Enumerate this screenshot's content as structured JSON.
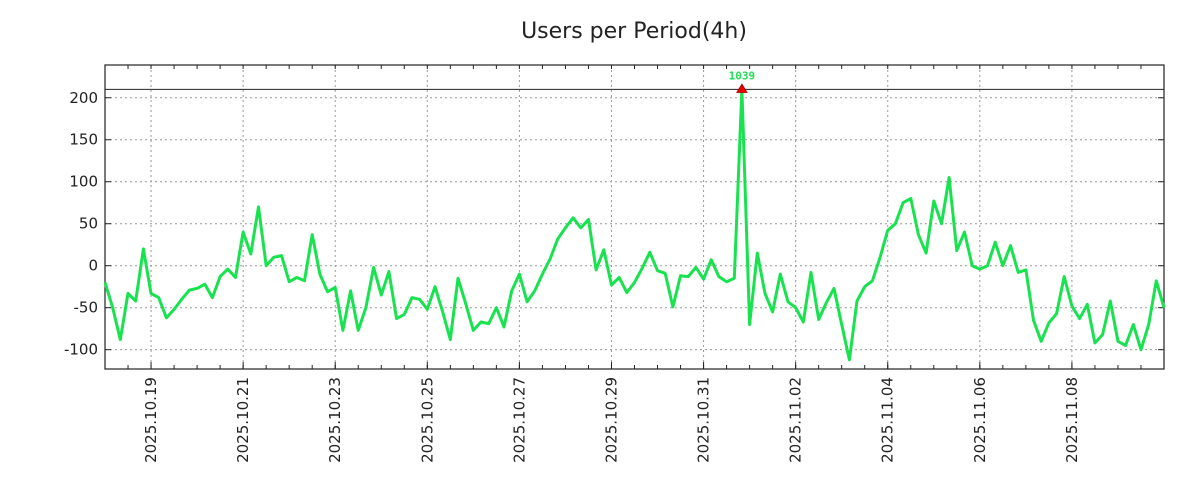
{
  "chart_data": {
    "type": "line",
    "title": "Users per Period(4h)",
    "xlabel": "",
    "ylabel": "",
    "x_start": "2025.10.18 00:00",
    "x_step_hours": 4,
    "x_range_days": [
      0,
      23
    ],
    "ylim": [
      -123,
      239
    ],
    "grid": true,
    "y_ticks": [
      -100,
      -50,
      0,
      50,
      100,
      150,
      200
    ],
    "x_ticks": [
      {
        "day": 1,
        "label": "2025.10.19"
      },
      {
        "day": 3,
        "label": "2025.10.21"
      },
      {
        "day": 5,
        "label": "2025.10.23"
      },
      {
        "day": 7,
        "label": "2025.10.25"
      },
      {
        "day": 9,
        "label": "2025.10.27"
      },
      {
        "day": 11,
        "label": "2025.10.29"
      },
      {
        "day": 13,
        "label": "2025.10.31"
      },
      {
        "day": 15,
        "label": "2025.11.02"
      },
      {
        "day": 17,
        "label": "2025.11.04"
      },
      {
        "day": 19,
        "label": "2025.11.06"
      },
      {
        "day": 21,
        "label": "2025.11.08"
      }
    ],
    "reference_line": 210,
    "peak": {
      "index": 83,
      "value": 210,
      "label": "1039"
    },
    "series": [
      {
        "name": "Users",
        "color": "#19e24f",
        "values": [
          -20,
          -50,
          -88,
          -33,
          -42,
          20,
          -33,
          -38,
          -62,
          -52,
          -40,
          -29,
          -27,
          -22,
          -38,
          -13,
          -4,
          -14,
          40,
          14,
          70,
          0,
          10,
          12,
          -19,
          -14,
          -18,
          37,
          -10,
          -31,
          -26,
          -77,
          -30,
          -77,
          -50,
          -2,
          -35,
          -7,
          -63,
          -58,
          -38,
          -40,
          -52,
          -25,
          -55,
          -88,
          -15,
          -45,
          -77,
          -67,
          -69,
          -50,
          -73,
          -30,
          -10,
          -43,
          -30,
          -10,
          8,
          32,
          45,
          57,
          45,
          55,
          -5,
          19,
          -23,
          -14,
          -32,
          -20,
          -3,
          16,
          -6,
          -9,
          -49,
          -12,
          -13,
          -2,
          -16,
          7,
          -13,
          -19,
          -15,
          210,
          -70,
          15,
          -33,
          -55,
          -10,
          -43,
          -50,
          -67,
          -8,
          -64,
          -44,
          -27,
          -70,
          -112,
          -42,
          -25,
          -18,
          10,
          42,
          50,
          75,
          80,
          37,
          15,
          77,
          50,
          105,
          18,
          40,
          0,
          -4,
          0,
          28,
          0,
          24,
          -8,
          -5,
          -65,
          -90,
          -68,
          -57,
          -13,
          -48,
          -63,
          -46,
          -92,
          -82,
          -42,
          -90,
          -95,
          -70,
          -100,
          -70,
          -18,
          -50
        ]
      }
    ]
  }
}
